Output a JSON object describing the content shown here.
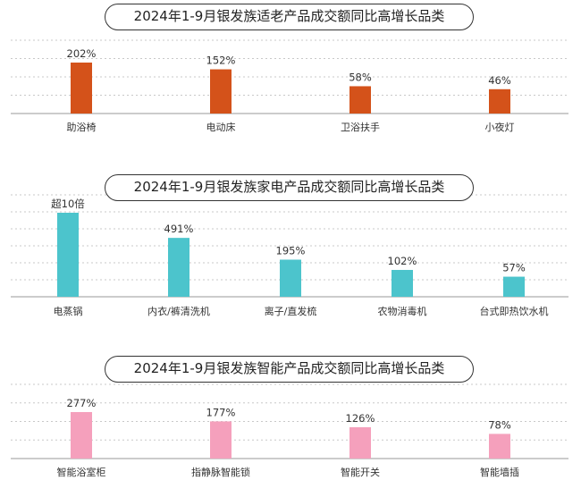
{
  "chart_data": [
    {
      "type": "bar",
      "title": "2024年1-9月银发族适老产品成交额同比高增长品类",
      "categories": [
        "助浴椅",
        "电动床",
        "卫浴扶手",
        "小夜灯"
      ],
      "values": [
        202,
        152,
        58,
        46
      ],
      "value_labels": [
        "202%",
        "152%",
        "58%",
        "46%"
      ],
      "ylim": [
        0,
        250
      ],
      "grid": true,
      "color": "#d4521a"
    },
    {
      "type": "bar",
      "title": "2024年1-9月银发族家电产品成交额同比高增长品类",
      "categories": [
        "电蒸锅",
        "内衣/裤清洗机",
        "离子/直发梳",
        "农物消毒机",
        "台式即热饮水机"
      ],
      "values": [
        1000,
        491,
        195,
        102,
        57
      ],
      "value_labels": [
        "超10倍",
        "491%",
        "195%",
        "102%",
        "57%"
      ],
      "ylim": [
        0,
        1100
      ],
      "grid": true,
      "color": "#4cc4cc"
    },
    {
      "type": "bar",
      "title": "2024年1-9月银发族智能产品成交额同比高增长品类",
      "categories": [
        "智能浴室柜",
        "指静脉智能锁",
        "智能开关",
        "智能墙插"
      ],
      "values": [
        277,
        177,
        126,
        78
      ],
      "value_labels": [
        "277%",
        "177%",
        "126%",
        "78%"
      ],
      "ylim": [
        0,
        350
      ],
      "grid": true,
      "color": "#f5a0bc"
    }
  ]
}
